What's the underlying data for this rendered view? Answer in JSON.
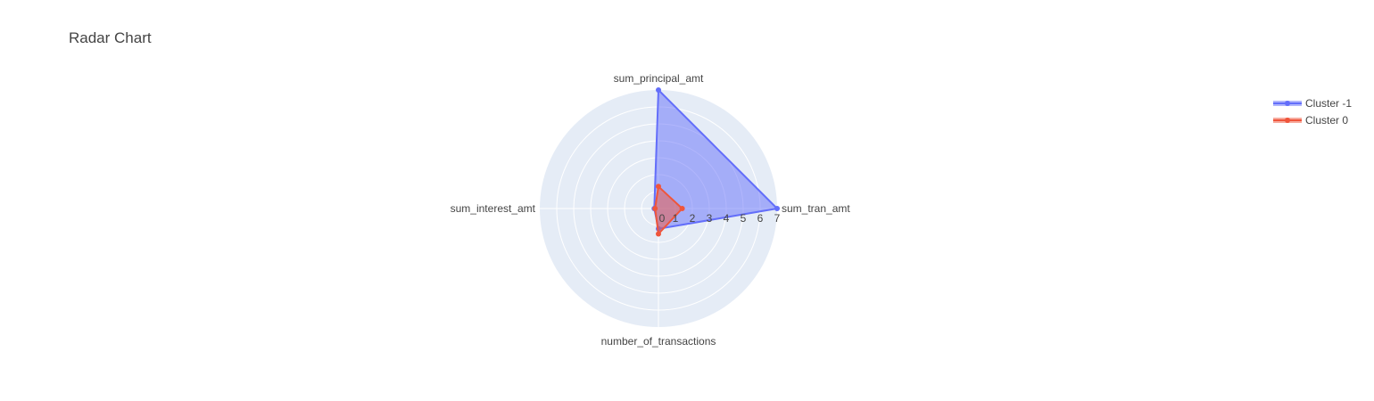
{
  "chart_data": {
    "type": "radar",
    "title": "Radar Chart",
    "axes": [
      "sum_tran_amt",
      "sum_principal_amt",
      "sum_interest_amt",
      "number_of_transactions"
    ],
    "radial_ticks": [
      "0",
      "1",
      "2",
      "3",
      "4",
      "5",
      "6",
      "7"
    ],
    "radial_range": [
      0,
      7
    ],
    "grid": true,
    "legend_position": "top-right",
    "series": [
      {
        "name": "Cluster -1",
        "color": "#636efa",
        "fill": true,
        "values": [
          7.0,
          7.0,
          0.25,
          1.2
        ]
      },
      {
        "name": "Cluster 0",
        "color": "#ef553b",
        "fill": true,
        "values": [
          1.4,
          1.3,
          0.2,
          1.5
        ]
      }
    ]
  },
  "legend": {
    "items": [
      {
        "label": "Cluster -1",
        "color": "#636efa"
      },
      {
        "label": "Cluster 0",
        "color": "#ef553b"
      }
    ]
  }
}
